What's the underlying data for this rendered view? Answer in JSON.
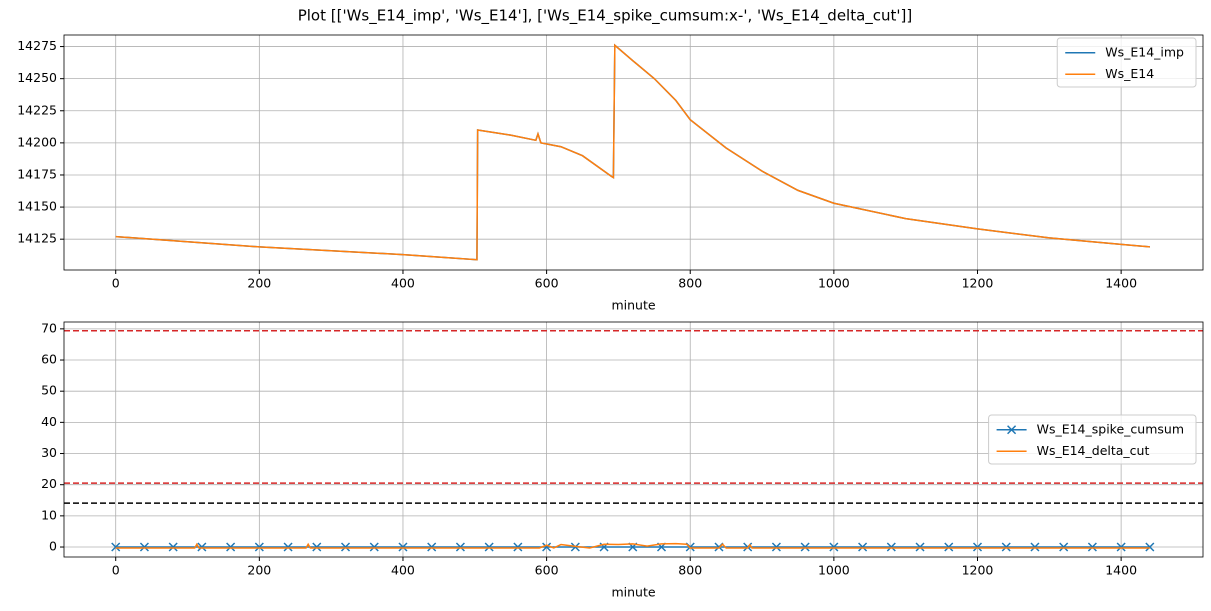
{
  "title": "Plot [['Ws_E14_imp', 'Ws_E14'], ['Ws_E14_spike_cumsum:x-', 'Ws_E14_delta_cut']]",
  "chart_data": [
    {
      "type": "line",
      "xlabel": "minute",
      "grid": true,
      "legend": "upper right",
      "xlim": [
        -72,
        1514
      ],
      "xticks": [
        0,
        200,
        400,
        600,
        800,
        1000,
        1200,
        1400
      ],
      "ylim": [
        14101,
        14284
      ],
      "yticks": [
        14125,
        14150,
        14175,
        14200,
        14225,
        14250,
        14275
      ],
      "x": [
        0,
        100,
        200,
        300,
        400,
        503,
        504,
        550,
        585,
        588,
        592,
        620,
        650,
        690,
        693,
        695,
        720,
        750,
        780,
        800,
        850,
        900,
        950,
        1000,
        1100,
        1200,
        1300,
        1400,
        1440
      ],
      "series": [
        {
          "name": "Ws_E14_imp",
          "color": "#1f77b4",
          "values": [
            14127,
            14123,
            14119,
            14116,
            14113,
            14109,
            14210,
            14206,
            14202,
            14207,
            14200,
            14197,
            14190,
            14174,
            14173,
            14276,
            14264,
            14250,
            14233,
            14218,
            14196,
            14178,
            14163,
            14153,
            14141,
            14133,
            14126,
            14121,
            14119
          ]
        },
        {
          "name": "Ws_E14",
          "color": "#ff7f0e",
          "values": [
            14127,
            14123,
            14119,
            14116,
            14113,
            14109,
            14210,
            14206,
            14202,
            14207,
            14200,
            14197,
            14190,
            14174,
            14173,
            14276,
            14264,
            14250,
            14233,
            14218,
            14196,
            14178,
            14163,
            14153,
            14141,
            14133,
            14126,
            14121,
            14119
          ]
        }
      ]
    },
    {
      "type": "line",
      "xlabel": "minute",
      "grid": true,
      "legend": "center right",
      "xlim": [
        -72,
        1514
      ],
      "xticks": [
        0,
        200,
        400,
        600,
        800,
        1000,
        1200,
        1400
      ],
      "ylim": [
        -3.2,
        72.2
      ],
      "yticks": [
        0,
        10,
        20,
        30,
        40,
        50,
        60,
        70
      ],
      "hlines": [
        {
          "value": 69.4,
          "color": "#d62728",
          "style": "dashed"
        },
        {
          "value": 20.5,
          "color": "#d62728",
          "style": "dashed"
        },
        {
          "value": 14.1,
          "color": "#000000",
          "style": "dashed"
        }
      ],
      "series": [
        {
          "name": "Ws_E14_spike_cumsum",
          "color": "#1f77b4",
          "marker": "x",
          "x": [
            0,
            40,
            80,
            120,
            160,
            200,
            240,
            280,
            320,
            360,
            400,
            440,
            480,
            520,
            560,
            600,
            640,
            680,
            720,
            760,
            800,
            840,
            880,
            920,
            960,
            1000,
            1040,
            1080,
            1120,
            1160,
            1200,
            1240,
            1280,
            1320,
            1360,
            1400,
            1440
          ],
          "values": [
            0,
            0,
            0,
            0,
            0,
            0,
            0,
            0,
            0,
            0,
            0,
            0,
            0,
            0,
            0,
            0,
            0,
            0,
            0,
            0,
            0,
            0,
            0,
            0,
            0,
            0,
            0,
            0,
            0,
            0,
            0,
            0,
            0,
            0,
            0,
            0,
            0
          ]
        },
        {
          "name": "Ws_E14_delta_cut",
          "color": "#ff7f0e",
          "x": [
            0,
            110,
            113,
            116,
            265,
            268,
            271,
            590,
            600,
            610,
            620,
            640,
            660,
            680,
            700,
            720,
            740,
            760,
            780,
            795,
            800,
            840,
            845,
            850,
            880,
            883,
            886,
            1440
          ],
          "values": [
            -0.3,
            -0.3,
            0.9,
            -0.3,
            -0.3,
            0.9,
            -0.3,
            -0.3,
            0.6,
            -0.3,
            0.8,
            0.2,
            -0.3,
            0.9,
            0.8,
            1.0,
            0.3,
            1.0,
            1.1,
            0.9,
            -0.3,
            -0.3,
            0.9,
            -0.3,
            -0.3,
            0.7,
            -0.3,
            -0.3
          ]
        }
      ]
    }
  ]
}
